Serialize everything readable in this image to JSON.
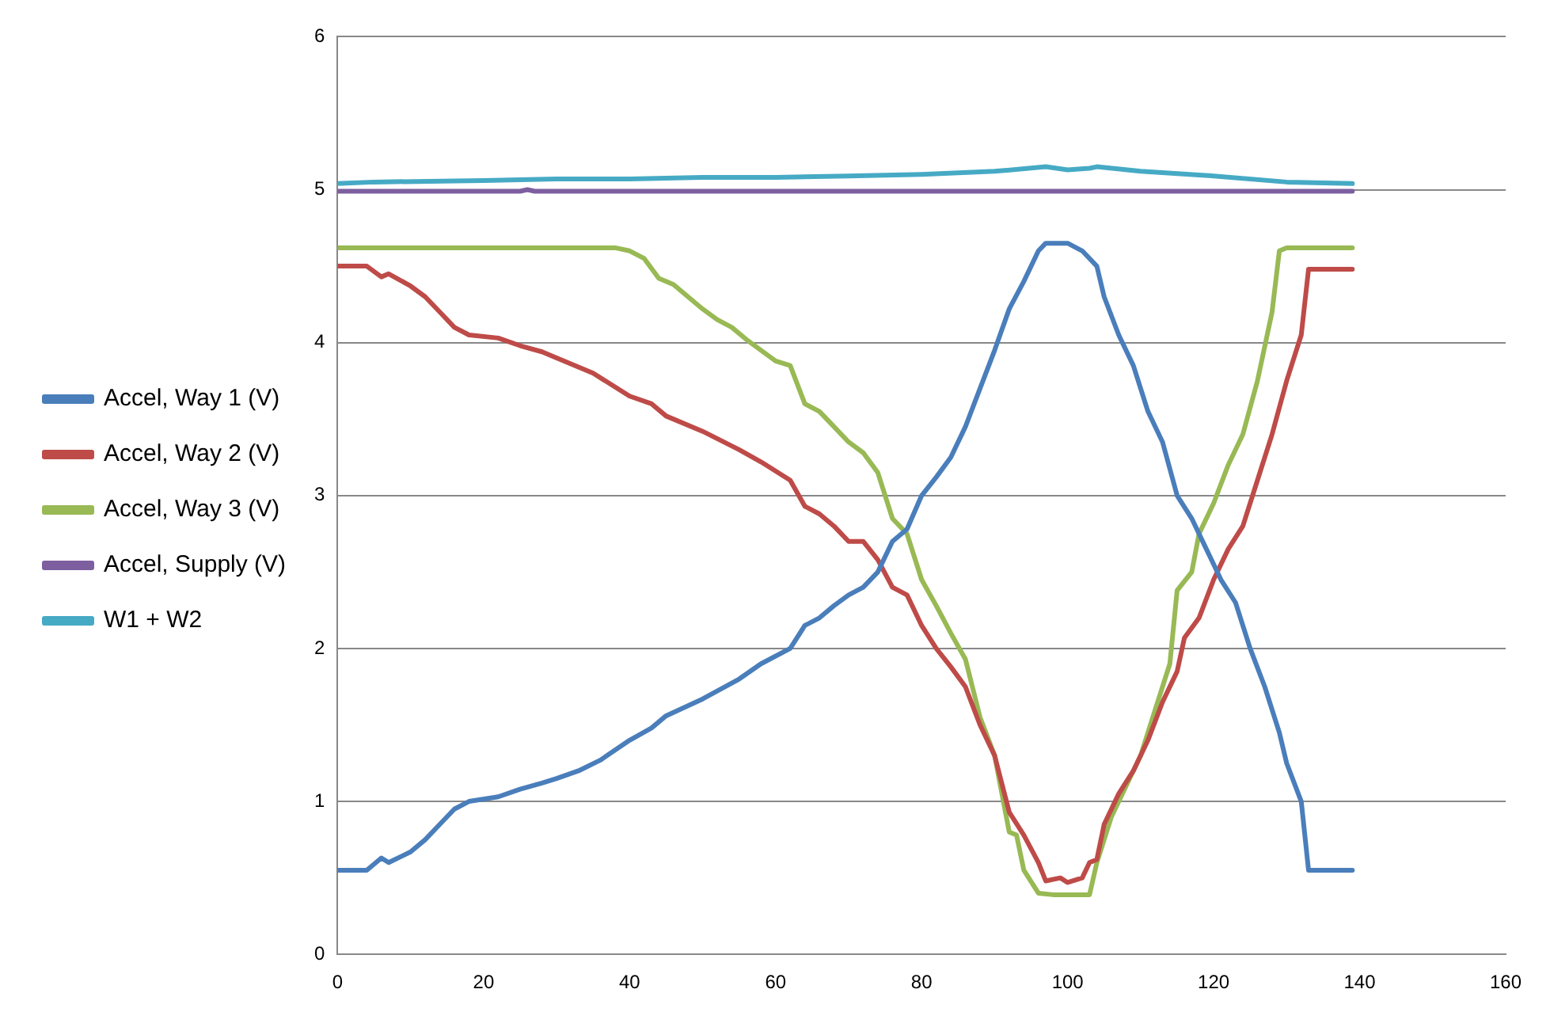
{
  "chart_data": {
    "type": "line",
    "xlim": [
      0,
      160
    ],
    "xticks": [
      0,
      20,
      40,
      60,
      80,
      100,
      120,
      140,
      160
    ],
    "ylim": [
      0,
      6
    ],
    "yticks": [
      0,
      1,
      2,
      3,
      4,
      5,
      6
    ],
    "grid": "y",
    "legend": "left",
    "marker": "none",
    "line_style": "solid",
    "series": [
      {
        "name": "Accel, Way 1 (V)",
        "color": "#4a7ebb",
        "x": [
          0,
          4,
          6,
          7,
          10,
          12,
          14,
          16,
          18,
          22,
          25,
          28,
          30,
          33,
          36,
          40,
          43,
          45,
          50,
          55,
          58,
          62,
          64,
          66,
          68,
          70,
          72,
          74,
          76,
          78,
          80,
          82,
          84,
          86,
          88,
          90,
          92,
          94,
          96,
          97,
          100,
          102,
          104,
          105,
          107,
          109,
          111,
          113,
          115,
          117,
          119,
          121,
          123,
          125,
          127,
          129,
          130,
          132,
          133,
          139
        ],
        "values": [
          0.55,
          0.55,
          0.63,
          0.6,
          0.67,
          0.75,
          0.85,
          0.95,
          1.0,
          1.03,
          1.08,
          1.12,
          1.15,
          1.2,
          1.27,
          1.4,
          1.48,
          1.56,
          1.67,
          1.8,
          1.9,
          2.0,
          2.15,
          2.2,
          2.28,
          2.35,
          2.4,
          2.5,
          2.7,
          2.78,
          3.0,
          3.12,
          3.25,
          3.45,
          3.7,
          3.95,
          4.22,
          4.4,
          4.6,
          4.65,
          4.65,
          4.6,
          4.5,
          4.3,
          4.05,
          3.85,
          3.55,
          3.35,
          3.0,
          2.85,
          2.65,
          2.45,
          2.3,
          2.0,
          1.75,
          1.45,
          1.25,
          1.0,
          0.55,
          0.55
        ]
      },
      {
        "name": "Accel, Way 2 (V)",
        "color": "#be4b48",
        "x": [
          0,
          4,
          6,
          7,
          10,
          12,
          14,
          16,
          18,
          22,
          25,
          28,
          30,
          35,
          40,
          43,
          45,
          50,
          55,
          58,
          62,
          64,
          66,
          68,
          70,
          72,
          74,
          76,
          78,
          80,
          82,
          84,
          86,
          88,
          90,
          92,
          94,
          96,
          97,
          99,
          100,
          102,
          103,
          104,
          105,
          107,
          109,
          111,
          113,
          115,
          116,
          118,
          120,
          122,
          124,
          126,
          128,
          130,
          132,
          133,
          139
        ],
        "values": [
          4.5,
          4.5,
          4.43,
          4.45,
          4.37,
          4.3,
          4.2,
          4.1,
          4.05,
          4.03,
          3.98,
          3.94,
          3.9,
          3.8,
          3.65,
          3.6,
          3.52,
          3.42,
          3.3,
          3.22,
          3.1,
          2.93,
          2.88,
          2.8,
          2.7,
          2.7,
          2.58,
          2.4,
          2.35,
          2.15,
          2.0,
          1.88,
          1.75,
          1.5,
          1.3,
          0.93,
          0.78,
          0.6,
          0.48,
          0.5,
          0.47,
          0.5,
          0.6,
          0.62,
          0.85,
          1.05,
          1.2,
          1.4,
          1.65,
          1.85,
          2.07,
          2.2,
          2.45,
          2.65,
          2.8,
          3.1,
          3.4,
          3.75,
          4.05,
          4.48,
          4.48
        ]
      },
      {
        "name": "Accel, Way 3 (V)",
        "color": "#98b954",
        "x": [
          0,
          38,
          40,
          42,
          44,
          46,
          48,
          50,
          52,
          54,
          56,
          58,
          60,
          62,
          64,
          66,
          68,
          70,
          72,
          74,
          76,
          78,
          80,
          82,
          84,
          86,
          88,
          90,
          92,
          93,
          94,
          96,
          98,
          100,
          103,
          104,
          106,
          108,
          110,
          112,
          114,
          115,
          117,
          118,
          120,
          122,
          124,
          126,
          128,
          129,
          130,
          139
        ],
        "values": [
          4.62,
          4.62,
          4.6,
          4.55,
          4.42,
          4.38,
          4.3,
          4.22,
          4.15,
          4.1,
          4.02,
          3.95,
          3.88,
          3.85,
          3.6,
          3.55,
          3.45,
          3.35,
          3.28,
          3.15,
          2.85,
          2.75,
          2.45,
          2.28,
          2.1,
          1.93,
          1.55,
          1.3,
          0.8,
          0.78,
          0.55,
          0.4,
          0.39,
          0.39,
          0.39,
          0.6,
          0.9,
          1.1,
          1.3,
          1.6,
          1.9,
          2.38,
          2.5,
          2.75,
          2.95,
          3.2,
          3.4,
          3.75,
          4.2,
          4.6,
          4.62,
          4.62
        ]
      },
      {
        "name": "Accel, Supply (V)",
        "color": "#7d5fa0",
        "x": [
          0,
          25,
          26,
          27,
          139
        ],
        "values": [
          4.99,
          4.99,
          5.0,
          4.99,
          4.99
        ]
      },
      {
        "name": "W1 + W2",
        "color": "#46aac5",
        "x": [
          0,
          5,
          20,
          30,
          40,
          50,
          60,
          70,
          80,
          90,
          97,
          100,
          103,
          104,
          110,
          120,
          130,
          139
        ],
        "values": [
          5.04,
          5.05,
          5.06,
          5.07,
          5.07,
          5.08,
          5.08,
          5.09,
          5.1,
          5.12,
          5.15,
          5.13,
          5.14,
          5.15,
          5.12,
          5.09,
          5.05,
          5.04
        ]
      }
    ]
  }
}
